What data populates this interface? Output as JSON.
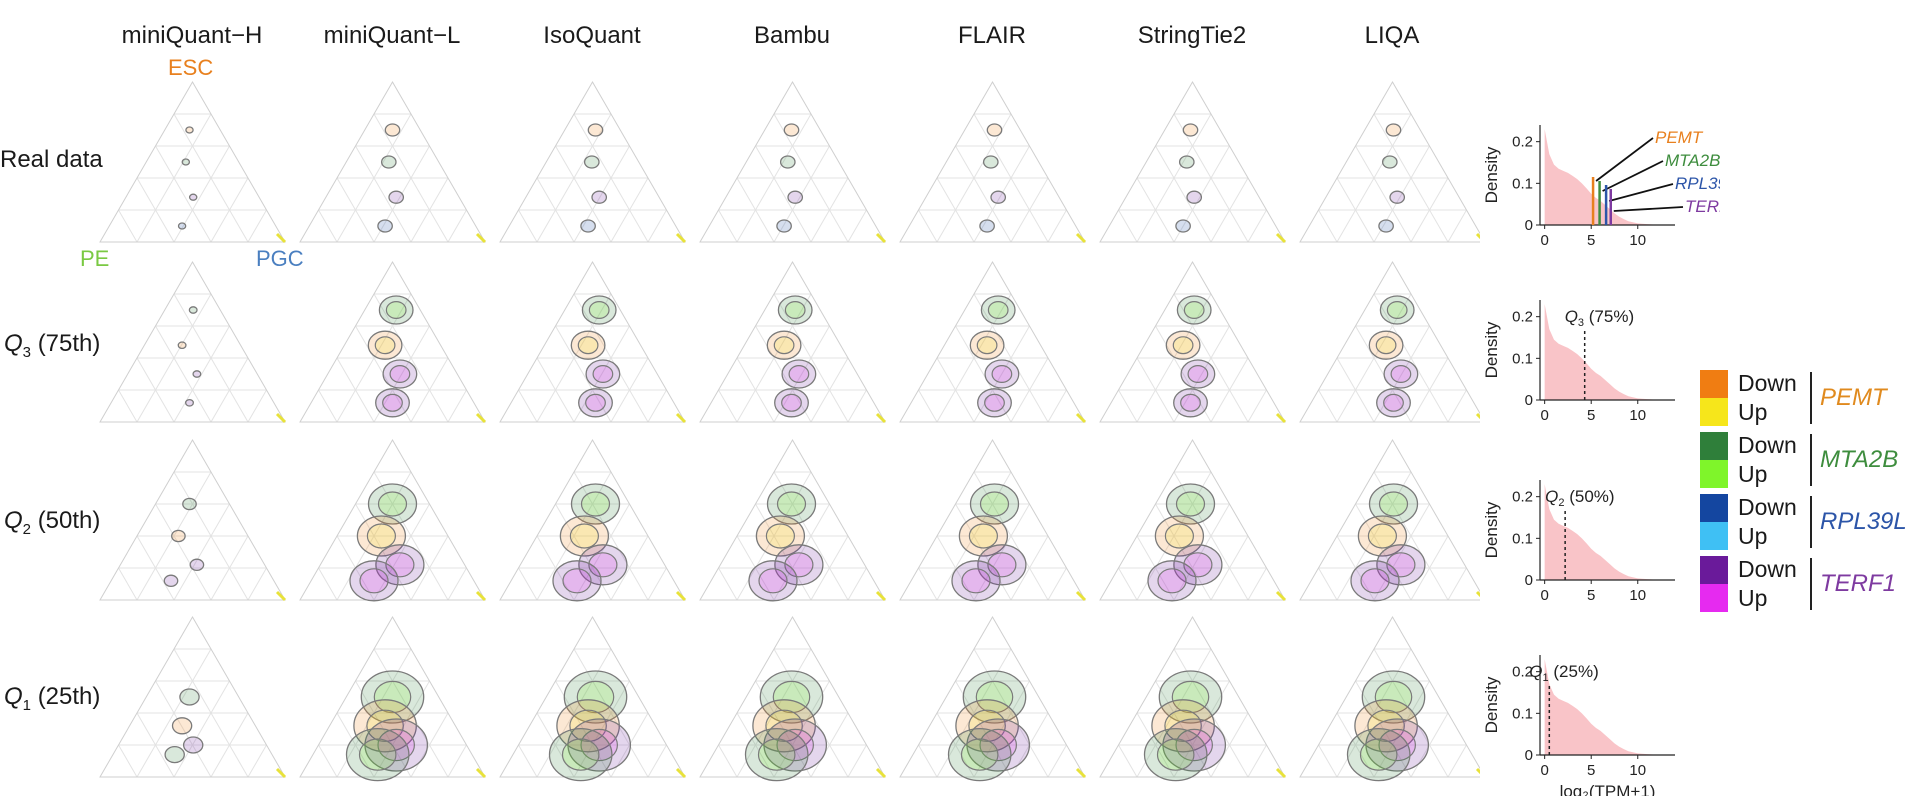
{
  "methods": [
    "miniQuant−H",
    "miniQuant−L",
    "IsoQuant",
    "Bambu",
    "FLAIR",
    "StringTie2",
    "LIQA"
  ],
  "vertices": {
    "top": {
      "label": "ESC",
      "color": "#e8801e"
    },
    "left": {
      "label": "PE",
      "color": "#7ac943"
    },
    "right": {
      "label": "PGC",
      "color": "#4a7fc0"
    }
  },
  "rows": [
    {
      "label": "Real data",
      "q": "",
      "pct": ""
    },
    {
      "label": "",
      "q": "3",
      "pct": "(75th)"
    },
    {
      "label": "",
      "q": "2",
      "pct": "(50th)"
    },
    {
      "label": "",
      "q": "1",
      "pct": "(25th)"
    }
  ],
  "genes": [
    {
      "name": "PEMT",
      "down": "#f07d12",
      "up": "#f6e61b",
      "text": "#e08a1e"
    },
    {
      "name": "MTA2B",
      "down": "#2f7f3a",
      "up": "#7ff52a",
      "text": "#3e8d3e"
    },
    {
      "name": "RPL39L",
      "down": "#1446a0",
      "up": "#3fc0f4",
      "text": "#2c55a8"
    },
    {
      "name": "TERF1",
      "down": "#6a1a9a",
      "up": "#e62af0",
      "text": "#7e3aa0"
    }
  ],
  "legend_labels": {
    "down": "Down",
    "up": "Up"
  },
  "density_ylabel": "Density",
  "density_xlabel": "log₂(TPM+1)",
  "chart_data": [
    {
      "type": "area",
      "panel": "Real data",
      "ylabel": "Density",
      "x_ticks": [
        0,
        5,
        10
      ],
      "y_ticks": [
        0,
        0.1,
        0.2
      ],
      "xlim": [
        -0.5,
        14
      ],
      "ylim": [
        0,
        0.24
      ],
      "fill_color": "#f9c4c8",
      "x": [
        0,
        0.5,
        1,
        1.5,
        2,
        2.5,
        3,
        3.5,
        4,
        4.5,
        5,
        5.5,
        6,
        6.5,
        7,
        7.5,
        8,
        8.5,
        9,
        10,
        11,
        12,
        13,
        14
      ],
      "y": [
        0.23,
        0.17,
        0.145,
        0.135,
        0.13,
        0.125,
        0.118,
        0.11,
        0.1,
        0.088,
        0.075,
        0.065,
        0.058,
        0.048,
        0.038,
        0.028,
        0.02,
        0.014,
        0.009,
        0.004,
        0.002,
        0.001,
        0,
        0
      ],
      "markers": [
        {
          "label": "PEMT",
          "x": 5.2,
          "color": "#e8801e"
        },
        {
          "label": "MTA2B",
          "x": 5.9,
          "color": "#3e8d3e"
        },
        {
          "label": "RPL39L",
          "x": 6.6,
          "color": "#2c55a8"
        },
        {
          "label": "TERF1",
          "x": 7.1,
          "color": "#7e3aa0"
        }
      ]
    },
    {
      "type": "area",
      "panel": "Q3 (75th)",
      "ylabel": "Density",
      "x_ticks": [
        0,
        5,
        10
      ],
      "y_ticks": [
        0,
        0.1,
        0.2
      ],
      "xlim": [
        -0.5,
        14
      ],
      "ylim": [
        0,
        0.24
      ],
      "fill_color": "#f9c4c8",
      "x": [
        0,
        0.5,
        1,
        1.5,
        2,
        2.5,
        3,
        3.5,
        4,
        4.5,
        5,
        5.5,
        6,
        6.5,
        7,
        7.5,
        8,
        8.5,
        9,
        10,
        11,
        12,
        13,
        14
      ],
      "y": [
        0.23,
        0.17,
        0.145,
        0.135,
        0.13,
        0.125,
        0.118,
        0.11,
        0.1,
        0.088,
        0.075,
        0.065,
        0.058,
        0.048,
        0.038,
        0.028,
        0.02,
        0.014,
        0.009,
        0.004,
        0.002,
        0.001,
        0,
        0
      ],
      "quantile_line": {
        "x": 4.3,
        "q": "3",
        "label": "(75%)"
      }
    },
    {
      "type": "area",
      "panel": "Q2 (50th)",
      "ylabel": "Density",
      "x_ticks": [
        0,
        5,
        10
      ],
      "y_ticks": [
        0,
        0.1,
        0.2
      ],
      "xlim": [
        -0.5,
        14
      ],
      "ylim": [
        0,
        0.24
      ],
      "fill_color": "#f9c4c8",
      "x": [
        0,
        0.5,
        1,
        1.5,
        2,
        2.5,
        3,
        3.5,
        4,
        4.5,
        5,
        5.5,
        6,
        6.5,
        7,
        7.5,
        8,
        8.5,
        9,
        10,
        11,
        12,
        13,
        14
      ],
      "y": [
        0.23,
        0.17,
        0.145,
        0.135,
        0.13,
        0.125,
        0.118,
        0.11,
        0.1,
        0.088,
        0.075,
        0.065,
        0.058,
        0.048,
        0.038,
        0.028,
        0.02,
        0.014,
        0.009,
        0.004,
        0.002,
        0.001,
        0,
        0
      ],
      "quantile_line": {
        "x": 2.2,
        "q": "2",
        "label": "(50%)"
      }
    },
    {
      "type": "area",
      "panel": "Q1 (25th)",
      "ylabel": "Density",
      "xlabel": "log₂(TPM+1)",
      "x_ticks": [
        0,
        5,
        10
      ],
      "y_ticks": [
        0,
        0.1,
        0.2
      ],
      "xlim": [
        -0.5,
        14
      ],
      "ylim": [
        0,
        0.24
      ],
      "fill_color": "#f9c4c8",
      "x": [
        0,
        0.5,
        1,
        1.5,
        2,
        2.5,
        3,
        3.5,
        4,
        4.5,
        5,
        5.5,
        6,
        6.5,
        7,
        7.5,
        8,
        8.5,
        9,
        10,
        11,
        12,
        13,
        14
      ],
      "y": [
        0.23,
        0.17,
        0.145,
        0.135,
        0.13,
        0.125,
        0.118,
        0.11,
        0.1,
        0.088,
        0.075,
        0.065,
        0.058,
        0.048,
        0.038,
        0.028,
        0.02,
        0.014,
        0.009,
        0.004,
        0.002,
        0.001,
        0,
        0
      ],
      "quantile_line": {
        "x": 0.5,
        "q": "1",
        "label": "(25%)"
      }
    }
  ]
}
